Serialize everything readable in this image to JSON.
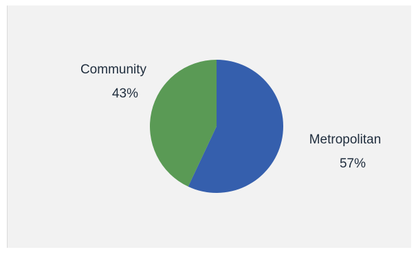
{
  "chart_data": {
    "type": "pie",
    "title": "",
    "categories": [
      "Metropolitan",
      "Community"
    ],
    "values": [
      57,
      43
    ],
    "value_labels": [
      "57%",
      "43%"
    ],
    "colors": [
      "#355fad",
      "#5a9a55"
    ],
    "legend": "none",
    "data_labels": "outside, category name and percent"
  }
}
